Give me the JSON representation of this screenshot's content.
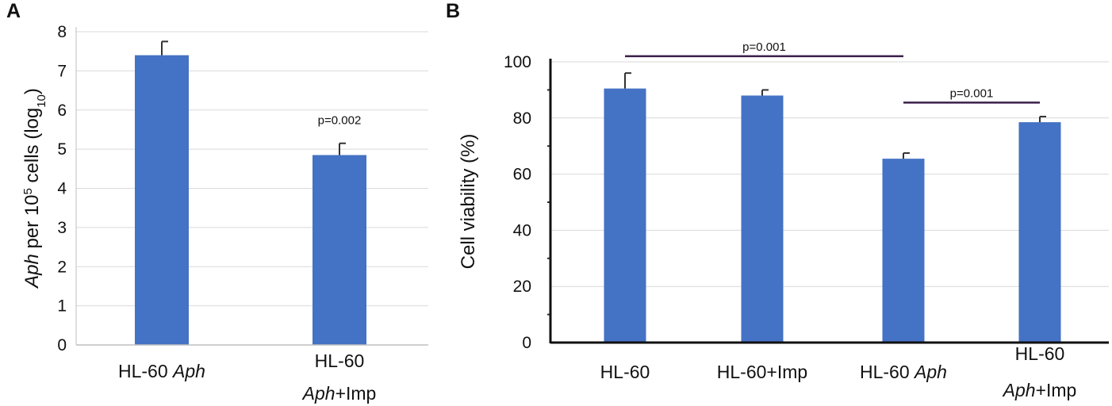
{
  "chart_data": [
    {
      "panel": "A",
      "type": "bar",
      "categories": [
        {
          "line1": "HL-60 ",
          "line1_italic": "Aph",
          "line2_italic": "",
          "line2": ""
        },
        {
          "line1": "HL-60",
          "line1_italic": "",
          "line2_italic": "Aph",
          "line2": "+Imp"
        }
      ],
      "values": [
        7.4,
        4.85
      ],
      "errors": [
        0.35,
        0.3
      ],
      "ylim": [
        0,
        8
      ],
      "yticks": [
        "0",
        "1",
        "2",
        "3",
        "4",
        "5",
        "6",
        "7",
        "8"
      ],
      "ylabel": {
        "italic": "Aph",
        "pre": " per 10",
        "sup": "5",
        "mid": " cells (log",
        "sub": "10",
        "post": ")"
      },
      "annotations": [
        {
          "text": "p=0.002",
          "bar": 1
        }
      ],
      "bar_color": "#4472c4",
      "grid": true
    },
    {
      "panel": "B",
      "type": "bar",
      "categories": [
        {
          "line1": "HL-60",
          "line1_italic": "",
          "line2_italic": "",
          "line2": ""
        },
        {
          "line1": "HL-60+Imp",
          "line1_italic": "",
          "line2_italic": "",
          "line2": ""
        },
        {
          "line1": "HL-60 ",
          "line1_italic": "Aph",
          "line2_italic": "",
          "line2": ""
        },
        {
          "line1": "HL-60",
          "line1_italic": "",
          "line2_italic": "Aph",
          "line2": "+Imp"
        }
      ],
      "values": [
        90.5,
        88,
        65.5,
        78.5
      ],
      "errors": [
        5.5,
        2,
        2,
        2
      ],
      "ylim": [
        0,
        100
      ],
      "yticks": [
        "0",
        "20",
        "40",
        "60",
        "80",
        "100"
      ],
      "ylabel": {
        "text": "Cell viability (%)"
      },
      "comparisons": [
        {
          "from": 0,
          "to": 2,
          "y": 102,
          "text": "p=0.001"
        },
        {
          "from": 2,
          "to": 3,
          "y": 85.5,
          "text": "p=0.001"
        }
      ],
      "bar_color": "#4472c4",
      "grid": true
    }
  ]
}
